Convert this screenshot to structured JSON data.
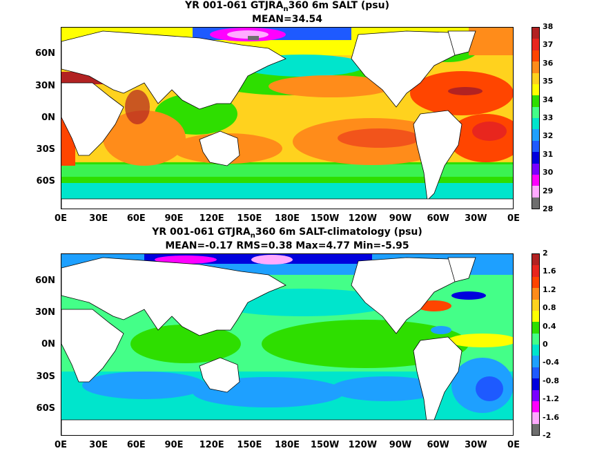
{
  "panel1": {
    "title_pre": "YR 001-061 GTJRA",
    "title_sub": "n",
    "title_post": "360 6m SALT (psu)",
    "subtitle": "MEAN=34.54",
    "colorbar_labels": [
      "38",
      "37",
      "36",
      "35",
      "34",
      "33",
      "32",
      "31",
      "30",
      "29",
      "28"
    ],
    "colorbar_colors": [
      "#b22222",
      "#e8261e",
      "#ff4500",
      "#ff8c1a",
      "#ffd21e",
      "#ffff00",
      "#2ede00",
      "#44ff88",
      "#00e5cc",
      "#1ea0ff",
      "#1e5aff",
      "#0000dd",
      "#7a00ff",
      "#ff00ff",
      "#ffaaff",
      "#6e6e6e"
    ]
  },
  "panel2": {
    "title_pre": "YR 001-061 GTJRA",
    "title_sub": "n",
    "title_post": "360 6m SALT-climatology (psu)",
    "subtitle": "MEAN=-0.17   RMS=0.38   Max=4.77   Min=-5.95",
    "colorbar_labels": [
      "2",
      "1.6",
      "1.2",
      "0.8",
      "0.4",
      "0",
      "-0.4",
      "-0.8",
      "-1.2",
      "-1.6",
      "-2"
    ],
    "colorbar_colors": [
      "#b22222",
      "#e8261e",
      "#ff4500",
      "#ff8c1a",
      "#ffd21e",
      "#ffff00",
      "#2ede00",
      "#44ff88",
      "#00e5cc",
      "#1ea0ff",
      "#1e5aff",
      "#0000dd",
      "#7a00ff",
      "#ff00ff",
      "#ffaaff",
      "#6e6e6e"
    ]
  },
  "lat_labels": [
    "60N",
    "30N",
    "0N",
    "30S",
    "60S"
  ],
  "lon_labels": [
    "0E",
    "30E",
    "60E",
    "90E",
    "120E",
    "150E",
    "180E",
    "150W",
    "120W",
    "90W",
    "60W",
    "30W",
    "0E"
  ]
}
